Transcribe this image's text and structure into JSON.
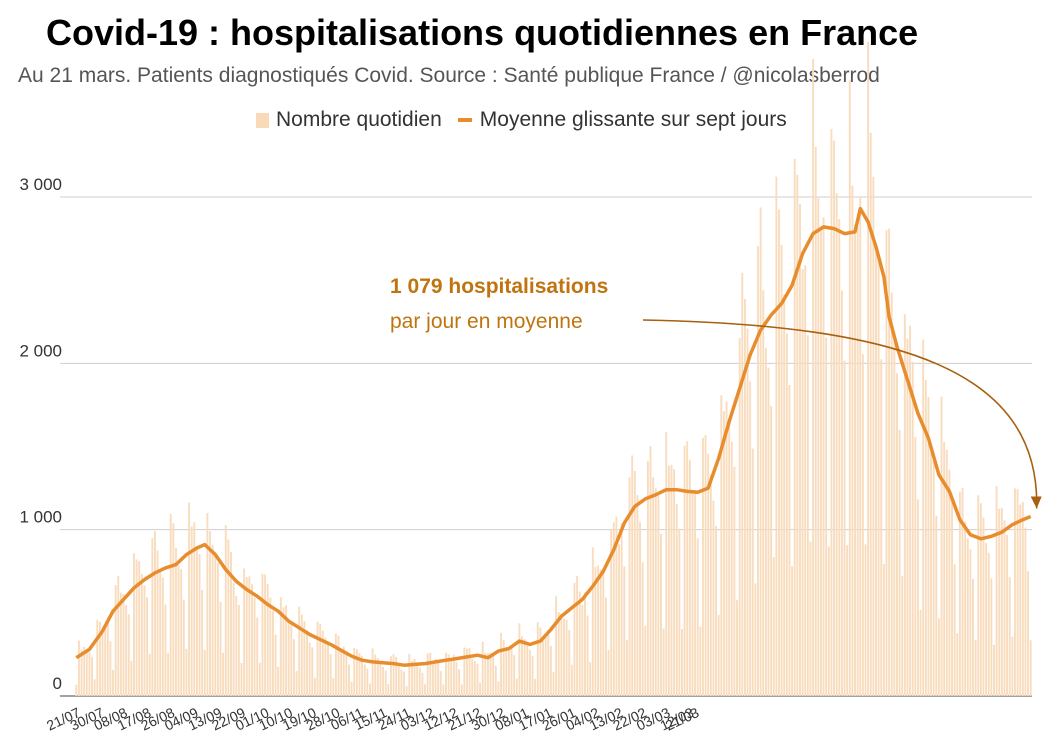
{
  "chart_data": {
    "type": "bar",
    "title": "Covid-19 : hospitalisations quotidiennes en France",
    "subtitle": "Au 21 mars. Patients diagnostiqués Covid. Source : Santé publique France / @nicolasberrod",
    "legend": [
      "Nombre quotidien",
      "Moyenne glissante sur sept jours"
    ],
    "legend_position": "top",
    "ylim": [
      0,
      3000
    ],
    "yticks": [
      0,
      1000,
      2000,
      3000
    ],
    "ytick_labels": [
      "0",
      "1 000",
      "2 000",
      "3 000"
    ],
    "grid": true,
    "xtick_labels": [
      "21/07",
      "30/07",
      "08/08",
      "17/08",
      "26/08",
      "04/09",
      "13/09",
      "22/09",
      "01/10",
      "10/10",
      "19/10",
      "28/10",
      "06/11",
      "15/11",
      "24/11",
      "03/12",
      "12/12",
      "21/12",
      "30/12",
      "08/01",
      "17/01",
      "26/01",
      "04/02",
      "13/02",
      "22/02",
      "03/03",
      "12/03",
      "21/03"
    ],
    "series": [
      {
        "name": "Moyenne glissante sur sept jours",
        "type": "line",
        "points": [
          [
            0,
            230
          ],
          [
            5,
            280
          ],
          [
            10,
            390
          ],
          [
            14,
            510
          ],
          [
            18,
            580
          ],
          [
            22,
            650
          ],
          [
            26,
            700
          ],
          [
            30,
            740
          ],
          [
            34,
            770
          ],
          [
            38,
            790
          ],
          [
            42,
            850
          ],
          [
            46,
            890
          ],
          [
            49,
            910
          ],
          [
            53,
            850
          ],
          [
            57,
            760
          ],
          [
            61,
            690
          ],
          [
            65,
            640
          ],
          [
            69,
            600
          ],
          [
            73,
            550
          ],
          [
            77,
            510
          ],
          [
            81,
            450
          ],
          [
            85,
            410
          ],
          [
            89,
            370
          ],
          [
            93,
            340
          ],
          [
            97,
            310
          ],
          [
            101,
            275
          ],
          [
            105,
            240
          ],
          [
            109,
            215
          ],
          [
            113,
            205
          ],
          [
            117,
            200
          ],
          [
            121,
            195
          ],
          [
            125,
            185
          ],
          [
            129,
            190
          ],
          [
            133,
            195
          ],
          [
            137,
            205
          ],
          [
            141,
            215
          ],
          [
            145,
            225
          ],
          [
            149,
            235
          ],
          [
            153,
            245
          ],
          [
            157,
            230
          ],
          [
            161,
            270
          ],
          [
            165,
            285
          ],
          [
            169,
            330
          ],
          [
            173,
            310
          ],
          [
            177,
            330
          ],
          [
            181,
            400
          ],
          [
            185,
            480
          ],
          [
            189,
            530
          ],
          [
            193,
            580
          ],
          [
            197,
            660
          ],
          [
            201,
            750
          ],
          [
            205,
            880
          ],
          [
            209,
            1040
          ],
          [
            213,
            1140
          ],
          [
            217,
            1185
          ],
          [
            221,
            1210
          ],
          [
            225,
            1240
          ],
          [
            229,
            1240
          ],
          [
            233,
            1230
          ],
          [
            237,
            1225
          ],
          [
            241,
            1250
          ],
          [
            245,
            1430
          ],
          [
            249,
            1650
          ],
          [
            253,
            1850
          ],
          [
            257,
            2050
          ],
          [
            261,
            2200
          ],
          [
            265,
            2290
          ],
          [
            269,
            2360
          ],
          [
            273,
            2470
          ],
          [
            277,
            2660
          ],
          [
            281,
            2780
          ],
          [
            285,
            2820
          ],
          [
            289,
            2810
          ],
          [
            293,
            2780
          ],
          [
            297,
            2790
          ],
          [
            299,
            2930
          ],
          [
            302,
            2850
          ],
          [
            305,
            2700
          ],
          [
            308,
            2520
          ],
          [
            310,
            2280
          ],
          [
            313,
            2100
          ],
          [
            317,
            1900
          ],
          [
            321,
            1700
          ],
          [
            325,
            1550
          ],
          [
            329,
            1330
          ],
          [
            333,
            1230
          ],
          [
            337,
            1060
          ],
          [
            341,
            970
          ],
          [
            345,
            945
          ],
          [
            349,
            960
          ],
          [
            353,
            985
          ],
          [
            357,
            1030
          ],
          [
            361,
            1060
          ],
          [
            364,
            1079
          ]
        ]
      },
      {
        "name": "Nombre quotidien",
        "type": "bar",
        "days": 365
      }
    ],
    "annotations": [
      {
        "text_bold": "1 079 hospitalisations",
        "text": "par jour en moyenne",
        "target_day": 364,
        "target_value": 1079
      }
    ]
  }
}
